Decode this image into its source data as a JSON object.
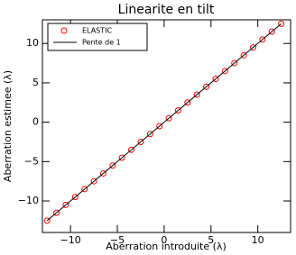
{
  "chart_data": {
    "type": "scatter",
    "title": "Linearite en tilt",
    "x_label": "Aberration introduite (λ)",
    "y_label": "Aberration estimee (λ)",
    "xlim": [
      -13,
      13.5
    ],
    "ylim": [
      -14,
      13
    ],
    "xticks": [
      {
        "value": -10,
        "label": "−10"
      },
      {
        "value": -5,
        "label": "−5"
      },
      0,
      5,
      10
    ],
    "yticks": [
      {
        "value": -10,
        "label": "−10"
      },
      {
        "value": -5,
        "label": "−5"
      },
      0,
      5,
      10
    ],
    "legend": "upper left",
    "series": [
      {
        "name": "ELASTIC",
        "color": "#ff0000",
        "marker": "open-circle",
        "x": [
          -12.5,
          -11.5,
          -10.5,
          -9.5,
          -8.5,
          -7.5,
          -6.5,
          -5.5,
          -4.5,
          -3.5,
          -2.5,
          -1.5,
          -0.5,
          0.5,
          1.5,
          2.5,
          3.5,
          4.5,
          5.5,
          6.5,
          7.5,
          8.5,
          9.5,
          10.5,
          11.5,
          12.5
        ],
        "values": [
          -12.5,
          -11.5,
          -10.5,
          -9.5,
          -8.5,
          -7.5,
          -6.5,
          -5.5,
          -4.5,
          -3.5,
          -2.5,
          -1.5,
          -0.5,
          0.5,
          1.5,
          2.5,
          3.5,
          4.5,
          5.5,
          6.5,
          7.5,
          8.5,
          9.5,
          10.5,
          11.5,
          12.5
        ]
      },
      {
        "name": "Pente de 1",
        "color": "#000000",
        "marker": "line",
        "x": [
          -12.5,
          12.5
        ],
        "values": [
          -12.5,
          12.5
        ]
      }
    ]
  }
}
